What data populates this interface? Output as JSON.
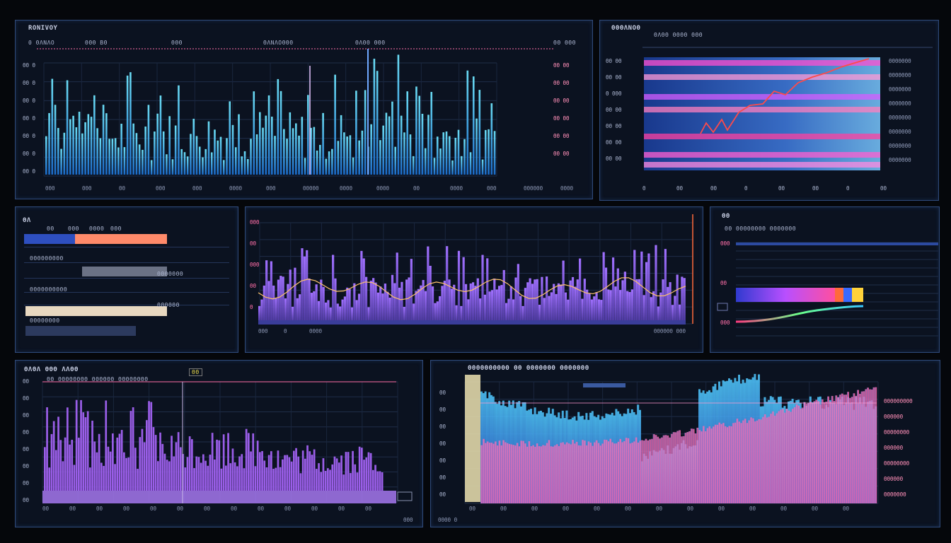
{
  "panels": {
    "p1": {
      "title": "RONIVOY",
      "tabs": [
        "0 ΘΛΝΛΟ",
        "ΘΘΘ ΒΘ",
        "ΘΘΘ",
        "ΘΛΝΛΟΘΘΘ",
        "ΘΛΘΘ ΘΘΘ",
        "ΘΘ ΘΘΘ"
      ],
      "ticks_y": [
        "ΘΘ Θ",
        "ΘΘ Θ",
        "ΘΘ Θ",
        "ΘΘ Θ",
        "ΘΘ Θ",
        "ΘΘ Θ",
        "ΘΘ Θ"
      ],
      "ticks_y_right": [
        "ΘΘ ΘΘ",
        "ΘΘ ΘΘ",
        "ΘΘ ΘΘ",
        "ΘΘ ΘΘ",
        "ΘΘ ΘΘ",
        "ΘΘ ΘΘ"
      ],
      "ticks_x": [
        "ΘΘΘ",
        "ΘΘΘ",
        "ΘΘ",
        "ΘΘΘ",
        "ΘΘΘ",
        "ΘΘΘΘ",
        "ΘΘΘ",
        "ΘΘΘΘΘ",
        "ΘΘΘΘ",
        "ΘΘΘΘ",
        "ΘΘ",
        "ΘΘΘΘ",
        "ΘΘΘ",
        "ΘΘΘΘΘΘ",
        "ΘΘΘΘ"
      ],
      "color": "#38d6f0"
    },
    "p2": {
      "title": "ΘΘΘΛΝΟΘ",
      "subtitle": "ΘΛΘΘ ΘΘΘΘ ΘΘΘ",
      "ticks_y": [
        "ΘΘ ΘΘ",
        "ΘΘ ΘΘ",
        "Θ ΘΘΘ",
        "ΘΘ ΘΘ",
        "ΘΘ ΘΘ",
        "ΘΘ ΘΘ",
        "ΘΘ ΘΘ"
      ],
      "ticks_x": [
        "Θ",
        "ΘΘ",
        "ΘΘ",
        "Θ",
        "ΘΘ",
        "ΘΘ",
        "Θ",
        "ΘΘ"
      ],
      "legend": [
        "ΘΘΘΘΘΘΘ",
        "ΘΘΘΘΘΘΘ",
        "ΘΘΘΘΘΘΘ",
        "ΘΘΘΘΘΘΘ",
        "ΘΘΘΘΘΘΘ",
        "ΘΘΘΘΘΘΘ",
        "ΘΘΘΘΘΘΘ",
        "ΘΘΘΘΘΘΘ"
      ]
    },
    "p3": {
      "title": "ΘΛ",
      "headers": [
        "ΘΘ",
        "ΘΘΘ",
        "ΘΘΘΘ",
        "ΘΘΘ"
      ],
      "rows": [
        "ΘΘΘΘΘΘΘΘΘ",
        "ΘΘΘΘΘΘΘ",
        "ΘΘΘΘΘΘΘΘΘΘ",
        "ΘΘΘΘΘΘ",
        "ΘΘΘΘΘΘΘΘ"
      ]
    },
    "p4": {
      "ticks_y": [
        "ΘΘΘ",
        "ΘΘ",
        "ΘΘΘ",
        "ΘΘ",
        "Θ"
      ],
      "foot": [
        "ΘΘΘ",
        "Θ",
        "ΘΘΘΘ"
      ],
      "foot_right": "ΘΘΘΘΘΘ ΘΘΘ",
      "color": "#8e5ee6"
    },
    "p5": {
      "title": "ΘΘ",
      "header": "ΘΘ  ΘΘΘΘΘΘΘΘ  ΘΘΘΘΘΘΘ",
      "ticks_y": [
        "ΘΘΘ",
        "ΘΘ",
        "ΘΘΘ"
      ]
    },
    "p6": {
      "title": "ΘΛΘΛ ΘΘΘ ΛΛΘΘ",
      "subtitle": "ΘΘ ΘΘΘΘΘΘΘΘ ΘΘΘΘΘΘ ΘΘΘΘΘΘΘΘ",
      "ticks_y": [
        "ΘΘ",
        "ΘΘ",
        "ΘΘ",
        "ΘΘ",
        "ΘΘ",
        "ΘΘ",
        "ΘΘ",
        "ΘΘ"
      ],
      "ticks_x": [
        "ΘΘ",
        "ΘΘ",
        "ΘΘ",
        "ΘΘ",
        "ΘΘ",
        "ΘΘ",
        "ΘΘ",
        "ΘΘ",
        "ΘΘ",
        "ΘΘ",
        "ΘΘ",
        "ΘΘ",
        "ΘΘ"
      ],
      "badge": "ΘΘ",
      "foot": "ΘΘΘ",
      "color": "#9a5ee8"
    },
    "p7": {
      "title": "ΘΘΘΘΘΘΘΘΘΘ ΘΘ ΘΘΘΘΘΘΘ  ΘΘΘΘΘΘΘ",
      "ticks_y": [
        "ΘΘ",
        "ΘΘ",
        "ΘΘ",
        "ΘΘ",
        "ΘΘ",
        "ΘΘ",
        "ΘΘ"
      ],
      "ticks_x": [
        "ΘΘ",
        "ΘΘ",
        "ΘΘ",
        "ΘΘ",
        "ΘΘ",
        "ΘΘ",
        "ΘΘ",
        "ΘΘ",
        "ΘΘ",
        "ΘΘ",
        "ΘΘ",
        "ΘΘ",
        "ΘΘ"
      ],
      "legend": [
        "ΘΘΘΘΘΘΘΘΘ",
        "ΘΘΘΘΘΘ",
        "ΘΘΘΘΘΘΘΘ",
        "ΘΘΘΘΘΘ",
        "ΘΘΘΘΘΘΘΘ",
        "ΘΘΘΘΘΘ",
        "ΘΘΘΘΘΘΘ"
      ],
      "foot": "ΘΘΘΘ Θ"
    }
  },
  "colors": {
    "bg": "#05070b",
    "panel": "#0b1220",
    "border": "#2f4a7a",
    "cyan": "#38d6f0",
    "violet": "#8e5ee6",
    "pink": "#ff6fa8"
  }
}
